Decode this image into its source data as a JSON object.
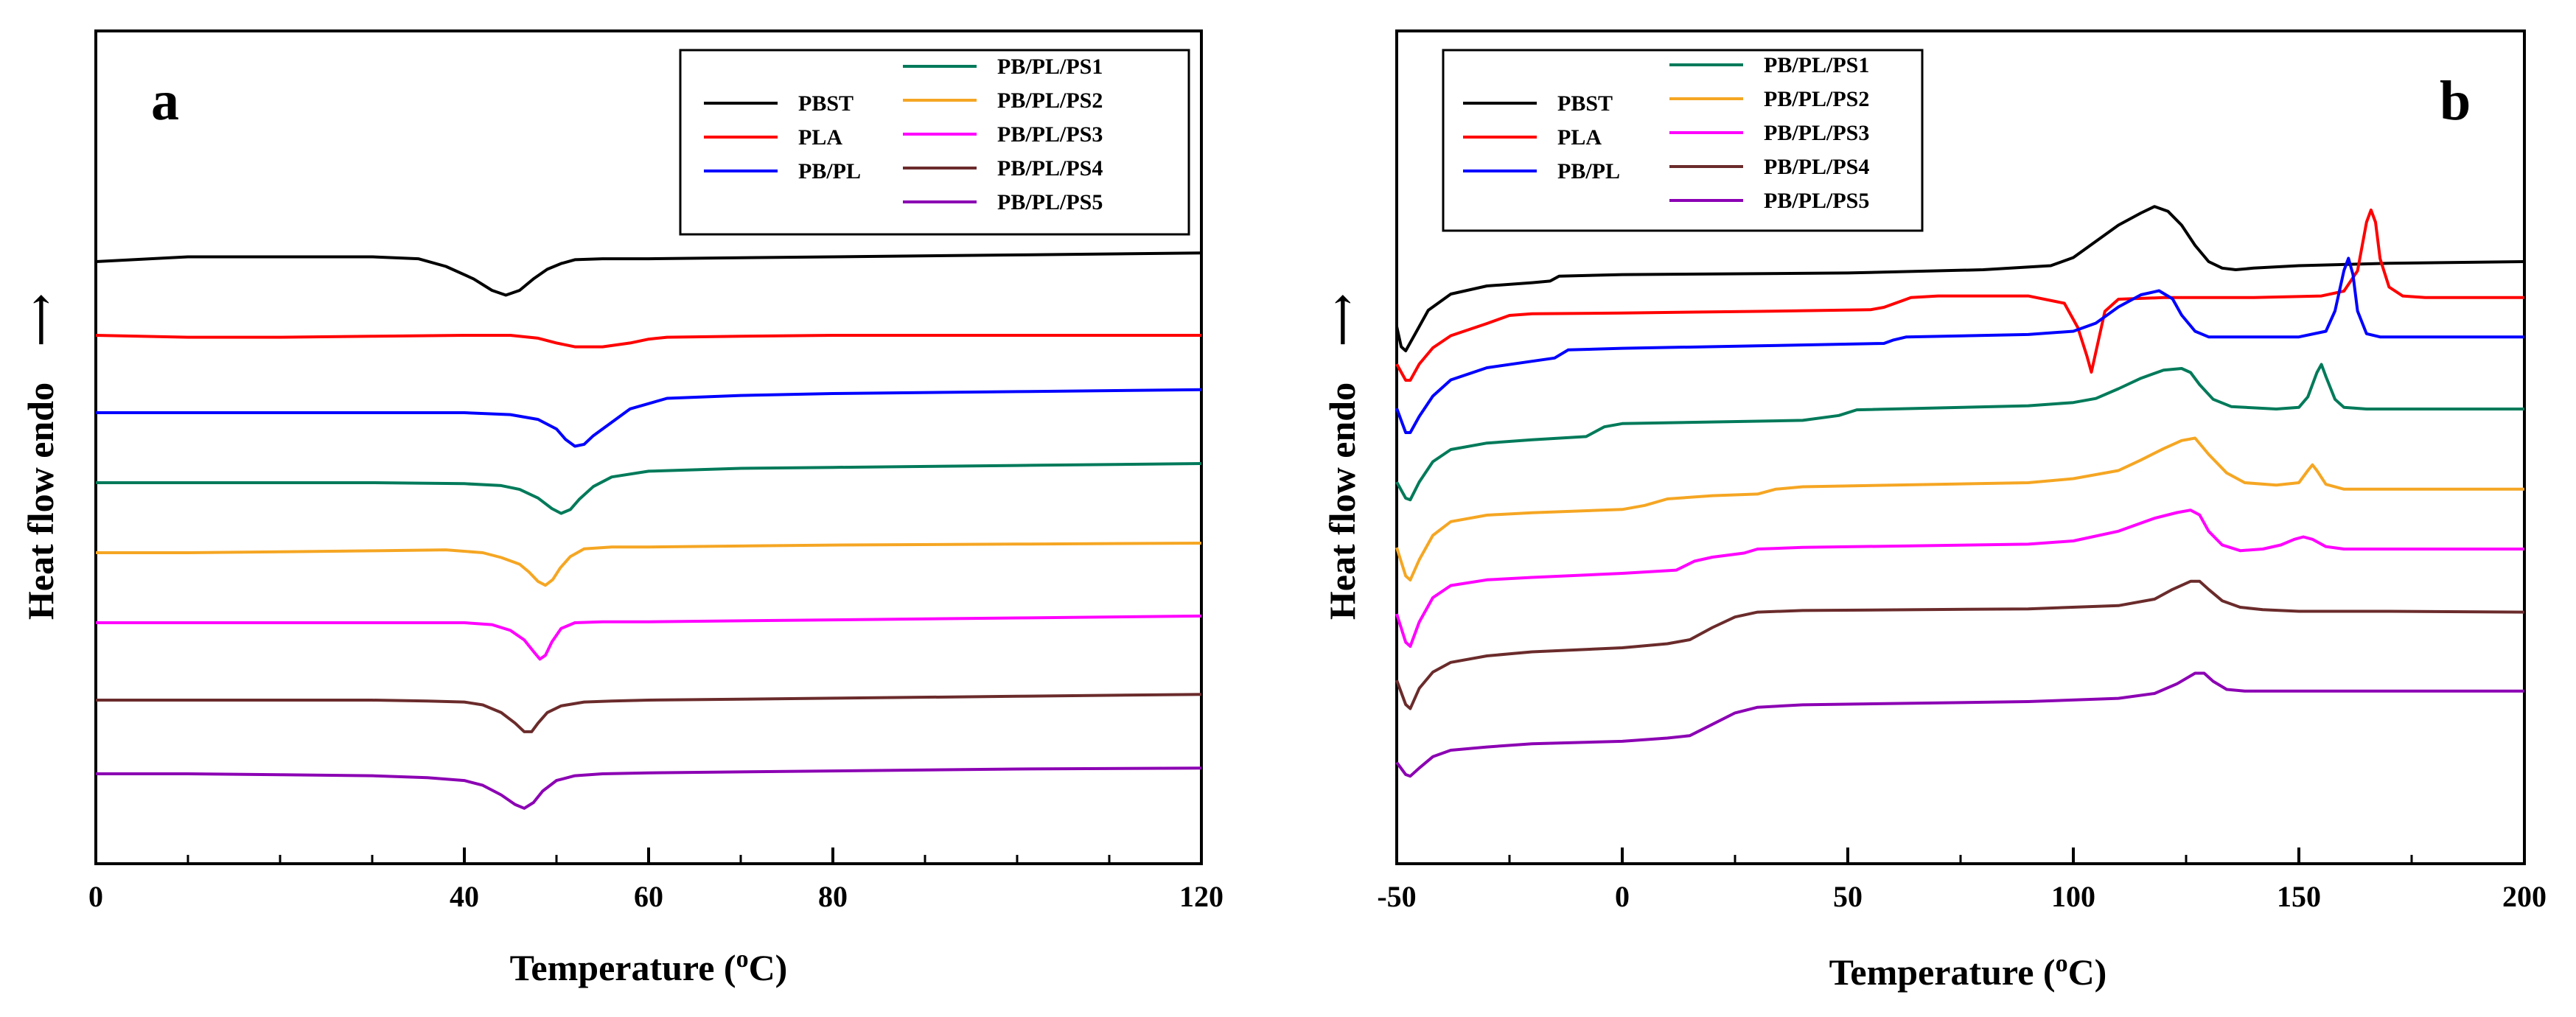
{
  "figure": {
    "description_free": true
  },
  "colors": {
    "PBST": "#000000",
    "PLA": "#ff0000",
    "PB/PL": "#0000ff",
    "PB/PL/PS1": "#007a5a",
    "PB/PL/PS2": "#f5a623",
    "PB/PL/PS3": "#ff00ff",
    "PB/PL/PS4": "#6b2b2b",
    "PB/PL/PS5": "#8b00b3"
  },
  "chart_data": [
    {
      "id": "a",
      "type": "line",
      "panel_label": "a",
      "xlabel": "Temperature (oC)",
      "xlabel_main": "Temperature (",
      "xlabel_sup": "o",
      "xlabel_tail": "C)",
      "ylabel": "Heat flow endo",
      "ylabel_arrow": "⟶",
      "xlim": [
        0,
        120
      ],
      "xticks": [
        0,
        40,
        60,
        80,
        120
      ],
      "xtick_labels": [
        "0",
        "40",
        "60",
        "80",
        "120"
      ],
      "minor_xticks": [
        10,
        20,
        30,
        50,
        70,
        90,
        100,
        110
      ],
      "legend_position": "top-right",
      "legend_columns": [
        [
          "PBST",
          "PLA",
          "PB/PL"
        ],
        [
          "PB/PL/PS1",
          "PB/PL/PS2",
          "PB/PL/PS3",
          "PB/PL/PS4",
          "PB/PL/PS5"
        ]
      ],
      "series": [
        {
          "name": "PBST",
          "baseline": 0.78,
          "x": [
            0,
            10,
            20,
            30,
            35,
            38,
            41,
            43,
            44.5,
            46,
            47.5,
            49,
            50.5,
            52,
            55,
            60,
            80,
            100,
            120
          ],
          "y": [
            0.0,
            0.05,
            0.05,
            0.05,
            0.03,
            -0.05,
            -0.18,
            -0.3,
            -0.35,
            -0.3,
            -0.18,
            -0.08,
            -0.02,
            0.02,
            0.03,
            0.03,
            0.05,
            0.07,
            0.09
          ]
        },
        {
          "name": "PLA",
          "x": [
            0,
            10,
            20,
            30,
            40,
            45,
            48,
            50,
            52,
            55,
            58,
            60,
            62,
            70,
            80,
            100,
            120
          ],
          "y": [
            0.0,
            -0.02,
            -0.02,
            -0.01,
            0.0,
            0.0,
            -0.03,
            -0.08,
            -0.12,
            -0.12,
            -0.08,
            -0.04,
            -0.02,
            -0.01,
            0.0,
            0.0,
            0.0
          ]
        },
        {
          "name": "PB/PL",
          "x": [
            0,
            10,
            20,
            30,
            40,
            45,
            48,
            50,
            51,
            52,
            53,
            54,
            56,
            58,
            62,
            70,
            80,
            100,
            120
          ],
          "y": [
            0.0,
            0.0,
            0.0,
            0.0,
            0.0,
            -0.02,
            -0.07,
            -0.17,
            -0.28,
            -0.35,
            -0.33,
            -0.24,
            -0.1,
            0.04,
            0.15,
            0.18,
            0.2,
            0.22,
            0.24
          ]
        },
        {
          "name": "PB/PL/PS1",
          "x": [
            0,
            10,
            20,
            30,
            40,
            44,
            46,
            48,
            49.5,
            50.5,
            51.5,
            52.5,
            54,
            56,
            60,
            70,
            80,
            100,
            120
          ],
          "y": [
            0.0,
            0.0,
            0.0,
            0.0,
            -0.01,
            -0.03,
            -0.07,
            -0.16,
            -0.27,
            -0.32,
            -0.28,
            -0.17,
            -0.04,
            0.06,
            0.12,
            0.15,
            0.16,
            0.18,
            0.2
          ]
        },
        {
          "name": "PB/PL/PS2",
          "x": [
            0,
            10,
            20,
            30,
            38,
            42,
            44,
            46,
            47,
            48,
            48.8,
            49.6,
            50.4,
            51.5,
            53,
            56,
            60,
            80,
            100,
            120
          ],
          "y": [
            0.0,
            0.0,
            0.01,
            0.02,
            0.03,
            0.0,
            -0.05,
            -0.12,
            -0.2,
            -0.3,
            -0.34,
            -0.28,
            -0.16,
            -0.04,
            0.04,
            0.06,
            0.06,
            0.08,
            0.09,
            0.1
          ]
        },
        {
          "name": "PB/PL/PS3",
          "x": [
            0,
            10,
            20,
            30,
            40,
            43,
            45,
            46.5,
            47.5,
            48.2,
            48.8,
            49.5,
            50.5,
            52,
            55,
            60,
            80,
            100,
            120
          ],
          "y": [
            0.0,
            0.0,
            0.0,
            0.0,
            0.0,
            -0.02,
            -0.08,
            -0.18,
            -0.3,
            -0.38,
            -0.34,
            -0.2,
            -0.06,
            0.0,
            0.01,
            0.01,
            0.03,
            0.05,
            0.07
          ]
        },
        {
          "name": "PB/PL/PS4",
          "x": [
            0,
            10,
            20,
            30,
            36,
            40,
            42,
            44,
            45.5,
            46.5,
            47.3,
            48,
            49,
            50.5,
            53,
            56,
            60,
            80,
            100,
            120
          ],
          "y": [
            0.0,
            0.0,
            0.0,
            0.0,
            -0.01,
            -0.02,
            -0.05,
            -0.13,
            -0.24,
            -0.33,
            -0.33,
            -0.24,
            -0.13,
            -0.06,
            -0.02,
            -0.01,
            0.0,
            0.02,
            0.04,
            0.06
          ]
        },
        {
          "name": "PB/PL/PS5",
          "x": [
            0,
            10,
            20,
            30,
            36,
            40,
            42,
            44,
            45.5,
            46.5,
            47.5,
            48.5,
            50,
            52,
            55,
            60,
            80,
            100,
            120
          ],
          "y": [
            0.0,
            0.0,
            -0.01,
            -0.02,
            -0.04,
            -0.07,
            -0.12,
            -0.22,
            -0.32,
            -0.36,
            -0.3,
            -0.18,
            -0.07,
            -0.02,
            0.0,
            0.01,
            0.03,
            0.05,
            0.06
          ]
        }
      ]
    },
    {
      "id": "b",
      "type": "line",
      "panel_label": "b",
      "xlabel": "Temperature (oC)",
      "xlabel_main": "Temperature (",
      "xlabel_sup": "o",
      "xlabel_tail": "C)",
      "ylabel": "Heat flow endo",
      "ylabel_arrow": "⟶",
      "xlim": [
        -50,
        200
      ],
      "xticks": [
        -50,
        0,
        50,
        100,
        150,
        200
      ],
      "xtick_labels": [
        "-50",
        "0",
        "50",
        "100",
        "150",
        "200"
      ],
      "minor_xticks": [
        -25,
        25,
        75,
        125,
        175
      ],
      "legend_position": "top-left",
      "legend_columns": [
        [
          "PBST",
          "PLA",
          "PB/PL"
        ],
        [
          "PB/PL/PS1",
          "PB/PL/PS2",
          "PB/PL/PS3",
          "PB/PL/PS4",
          "PB/PL/PS5"
        ]
      ],
      "series": [
        {
          "name": "PBST",
          "x": [
            -50,
            -49,
            -48,
            -46,
            -43,
            -38,
            -30,
            -20,
            -16,
            -14,
            0,
            50,
            80,
            95,
            100,
            105,
            110,
            115,
            118,
            121,
            124,
            127,
            130,
            133,
            136,
            140,
            150,
            170,
            200
          ],
          "y": [
            0.2,
            -0.05,
            -0.1,
            0.1,
            0.4,
            0.6,
            0.7,
            0.74,
            0.76,
            0.82,
            0.84,
            0.86,
            0.9,
            0.95,
            1.05,
            1.25,
            1.45,
            1.6,
            1.68,
            1.62,
            1.45,
            1.2,
            1.0,
            0.92,
            0.9,
            0.92,
            0.95,
            0.98,
            1.0
          ]
        },
        {
          "name": "PLA",
          "x": [
            -50,
            -48,
            -47,
            -45,
            -42,
            -38,
            -30,
            -25,
            -20,
            0,
            30,
            55,
            58,
            62,
            64,
            70,
            90,
            98,
            101,
            103,
            104,
            105,
            107,
            110,
            120,
            140,
            155,
            160,
            163,
            165,
            166,
            167,
            168,
            170,
            173,
            178,
            185,
            200
          ],
          "y": [
            0.1,
            -0.1,
            -0.1,
            0.1,
            0.3,
            0.45,
            0.6,
            0.7,
            0.72,
            0.73,
            0.75,
            0.77,
            0.8,
            0.88,
            0.92,
            0.94,
            0.94,
            0.85,
            0.55,
            0.2,
            0.0,
            0.25,
            0.75,
            0.9,
            0.92,
            0.92,
            0.94,
            1.0,
            1.25,
            1.85,
            2.0,
            1.85,
            1.4,
            1.05,
            0.94,
            0.92,
            0.92,
            0.92
          ]
        },
        {
          "name": "PB/PL",
          "x": [
            -50,
            -48,
            -47,
            -45,
            -42,
            -38,
            -30,
            -20,
            -15,
            -12,
            0,
            30,
            58,
            60,
            63,
            90,
            100,
            105,
            110,
            115,
            119,
            122,
            124,
            127,
            130,
            150,
            156,
            158,
            160,
            161,
            162,
            163,
            165,
            168,
            175,
            200
          ],
          "y": [
            0.1,
            -0.2,
            -0.2,
            0.0,
            0.25,
            0.45,
            0.6,
            0.68,
            0.72,
            0.82,
            0.84,
            0.87,
            0.9,
            0.94,
            0.98,
            1.01,
            1.05,
            1.15,
            1.35,
            1.5,
            1.55,
            1.45,
            1.25,
            1.05,
            0.98,
            0.98,
            1.05,
            1.3,
            1.8,
            1.95,
            1.75,
            1.3,
            1.02,
            0.98,
            0.98,
            0.98
          ]
        },
        {
          "name": "PB/PL/PS1",
          "x": [
            -50,
            -48,
            -47,
            -45,
            -42,
            -38,
            -30,
            -20,
            -8,
            -4,
            0,
            40,
            48,
            52,
            90,
            100,
            105,
            110,
            115,
            120,
            124,
            126,
            128,
            131,
            135,
            145,
            150,
            152,
            154,
            155,
            156,
            158,
            160,
            165,
            175,
            200
          ],
          "y": [
            0.1,
            -0.1,
            -0.12,
            0.1,
            0.35,
            0.5,
            0.58,
            0.62,
            0.66,
            0.78,
            0.82,
            0.86,
            0.92,
            0.99,
            1.04,
            1.08,
            1.13,
            1.25,
            1.38,
            1.48,
            1.5,
            1.45,
            1.3,
            1.12,
            1.03,
            1.0,
            1.02,
            1.15,
            1.45,
            1.55,
            1.4,
            1.12,
            1.02,
            1.0,
            1.0,
            1.0
          ]
        },
        {
          "name": "PB/PL/PS2",
          "x": [
            -50,
            -48,
            -47,
            -45,
            -42,
            -38,
            -30,
            -20,
            0,
            5,
            10,
            20,
            30,
            34,
            40,
            90,
            100,
            110,
            115,
            120,
            124,
            127,
            130,
            134,
            138,
            145,
            150,
            152,
            153,
            154,
            156,
            160,
            170,
            200
          ],
          "y": [
            0.2,
            -0.15,
            -0.2,
            0.05,
            0.35,
            0.52,
            0.6,
            0.63,
            0.67,
            0.72,
            0.8,
            0.84,
            0.86,
            0.92,
            0.95,
            1.0,
            1.05,
            1.15,
            1.28,
            1.42,
            1.52,
            1.55,
            1.35,
            1.12,
            1.0,
            0.97,
            1.0,
            1.15,
            1.22,
            1.15,
            0.98,
            0.92,
            0.92,
            0.92
          ]
        },
        {
          "name": "PB/PL/PS3",
          "x": [
            -50,
            -48,
            -47,
            -45,
            -42,
            -38,
            -30,
            -20,
            0,
            12,
            16,
            20,
            27,
            30,
            40,
            90,
            100,
            110,
            118,
            123,
            126,
            128,
            130,
            133,
            137,
            142,
            146,
            149,
            151,
            153,
            156,
            160,
            170,
            200
          ],
          "y": [
            0.2,
            -0.15,
            -0.2,
            0.1,
            0.4,
            0.55,
            0.62,
            0.65,
            0.7,
            0.74,
            0.85,
            0.9,
            0.95,
            1.0,
            1.02,
            1.06,
            1.1,
            1.22,
            1.38,
            1.45,
            1.48,
            1.42,
            1.22,
            1.05,
            0.98,
            1.0,
            1.05,
            1.12,
            1.15,
            1.12,
            1.03,
            1.0,
            1.0,
            1.0
          ]
        },
        {
          "name": "PB/PL/PS4",
          "x": [
            -50,
            -48,
            -47,
            -45,
            -42,
            -38,
            -30,
            -20,
            0,
            10,
            15,
            20,
            25,
            30,
            40,
            90,
            110,
            118,
            122,
            126,
            128,
            130,
            133,
            137,
            142,
            150,
            170,
            200
          ],
          "y": [
            0.2,
            -0.1,
            -0.15,
            0.1,
            0.3,
            0.42,
            0.5,
            0.55,
            0.6,
            0.65,
            0.7,
            0.85,
            0.98,
            1.04,
            1.06,
            1.08,
            1.12,
            1.2,
            1.32,
            1.42,
            1.42,
            1.32,
            1.18,
            1.1,
            1.07,
            1.05,
            1.05,
            1.04
          ]
        },
        {
          "name": "PB/PL/PS5",
          "x": [
            -50,
            -48,
            -47,
            -45,
            -42,
            -38,
            -30,
            -20,
            0,
            10,
            15,
            20,
            25,
            30,
            40,
            90,
            110,
            118,
            123,
            127,
            129,
            131,
            134,
            138,
            145,
            170,
            200
          ],
          "y": [
            0.05,
            -0.1,
            -0.12,
            -0.02,
            0.12,
            0.2,
            0.24,
            0.28,
            0.31,
            0.35,
            0.38,
            0.52,
            0.66,
            0.73,
            0.76,
            0.8,
            0.84,
            0.9,
            1.02,
            1.15,
            1.15,
            1.05,
            0.95,
            0.93,
            0.93,
            0.93,
            0.93
          ]
        }
      ]
    }
  ]
}
